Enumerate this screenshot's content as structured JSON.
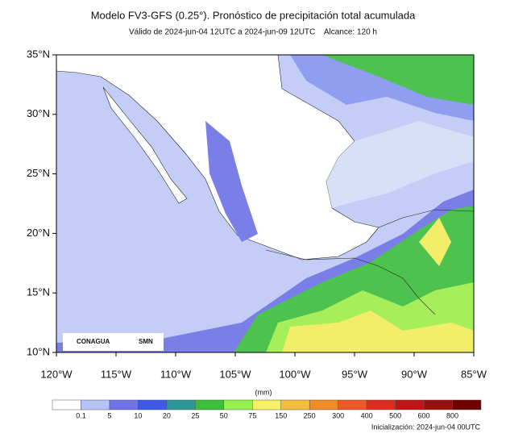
{
  "header": {
    "title": "Modelo FV3-GFS (0.25°). Pronóstico de precipitación total acumulada",
    "subtitle": "Válido de 2024-jun-04 12UTC a 2024-jun-09 12UTC    Alcance: 120 h"
  },
  "map": {
    "xlim": [
      -120,
      -85
    ],
    "ylim": [
      10,
      35
    ],
    "xticks": [
      {
        "value": -120,
        "label": "120°W"
      },
      {
        "value": -115,
        "label": "115°W"
      },
      {
        "value": -110,
        "label": "110°W"
      },
      {
        "value": -105,
        "label": "105°W"
      },
      {
        "value": -100,
        "label": "100°W"
      },
      {
        "value": -95,
        "label": "95°W"
      },
      {
        "value": -90,
        "label": "90°W"
      },
      {
        "value": -85,
        "label": "85°W"
      }
    ],
    "yticks": [
      {
        "value": 10,
        "label": "10°N"
      },
      {
        "value": 15,
        "label": "15°N"
      },
      {
        "value": 20,
        "label": "20°N"
      },
      {
        "value": 25,
        "label": "25°N"
      },
      {
        "value": 30,
        "label": "30°N"
      },
      {
        "value": 35,
        "label": "35°N"
      }
    ],
    "logos": [
      "CONAGUA",
      "SMN"
    ]
  },
  "colorbar": {
    "unit": "(mm)",
    "labels": [
      0.1,
      5,
      10,
      20,
      25,
      50,
      75,
      150,
      250,
      300,
      400,
      500,
      600,
      800
    ],
    "colors": [
      "#ffffff",
      "#b4c3f5",
      "#6e73e6",
      "#3c5ae6",
      "#2d9696",
      "#3cbe3c",
      "#96f050",
      "#f5f064",
      "#f0be3c",
      "#f08c28",
      "#eb5a28",
      "#dc2d1e",
      "#be1414",
      "#961010",
      "#6e0000"
    ]
  },
  "footer": {
    "init": "Inicialización: 2024-jun-04 00UTC"
  }
}
